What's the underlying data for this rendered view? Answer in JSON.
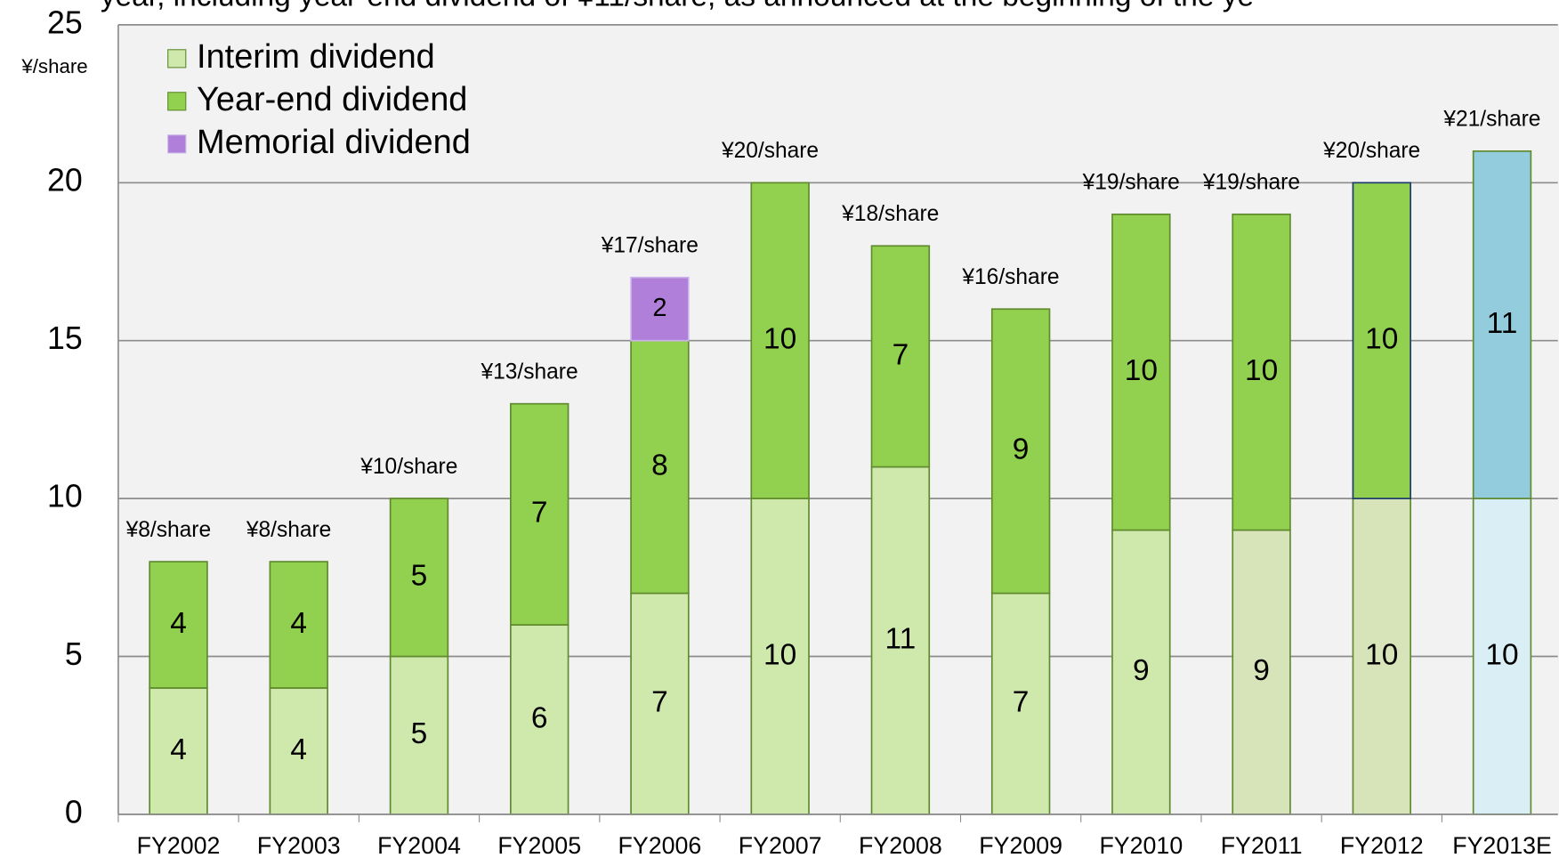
{
  "chart_data": {
    "type": "stacked_bar",
    "title": "year, including year-end dividend of ¥11/share, as announced at the beginning of the ye",
    "y_label": "¥/share",
    "categories": [
      "FY2002",
      "FY2003",
      "FY2004",
      "FY2005",
      "FY2006",
      "FY2007",
      "FY2008",
      "FY2009",
      "FY2010",
      "FY2011",
      "FY2012",
      "FY2013E"
    ],
    "series": [
      {
        "name": "Interim dividend",
        "color": "#cfe9ad",
        "colors": [
          "#cfe9ad",
          "#cfe9ad",
          "#cfe9ad",
          "#cfe9ad",
          "#cfe9ad",
          "#cfe9ad",
          "#cfe9ad",
          "#cfe9ad",
          "#cfe9ad",
          "#d7e3b8",
          "#d7e3b8",
          "#d9eef5"
        ],
        "values": [
          4,
          4,
          5,
          6,
          7,
          10,
          11,
          7,
          9,
          9,
          10,
          10
        ]
      },
      {
        "name": "Year-end dividend",
        "color": "#92d050",
        "colors": [
          "#92d050",
          "#92d050",
          "#92d050",
          "#92d050",
          "#92d050",
          "#92d050",
          "#92d050",
          "#92d050",
          "#92d050",
          "#92d050",
          "#92d050",
          "#93cddd"
        ],
        "values": [
          4,
          4,
          5,
          7,
          8,
          10,
          7,
          9,
          10,
          10,
          10,
          11
        ]
      },
      {
        "name": "Memorial dividend",
        "color": "#b07fd9",
        "values": [
          null,
          null,
          null,
          null,
          2,
          null,
          null,
          null,
          null,
          null,
          null,
          null
        ]
      }
    ],
    "totals": {
      "values": [
        8,
        8,
        10,
        13,
        17,
        20,
        18,
        16,
        19,
        19,
        20,
        21
      ],
      "value_labels": [
        "¥8/share",
        "¥8/share",
        "¥10/share",
        "¥13/share",
        "¥17/share",
        "¥20/share",
        "¥18/share",
        "¥16/share",
        "¥19/share",
        "¥19/share",
        "¥20/share",
        "¥21/share"
      ]
    },
    "ylim": [
      0,
      25
    ],
    "yticks": [
      0,
      5,
      10,
      15,
      20,
      25
    ],
    "grid": true,
    "legend": "top-left"
  }
}
